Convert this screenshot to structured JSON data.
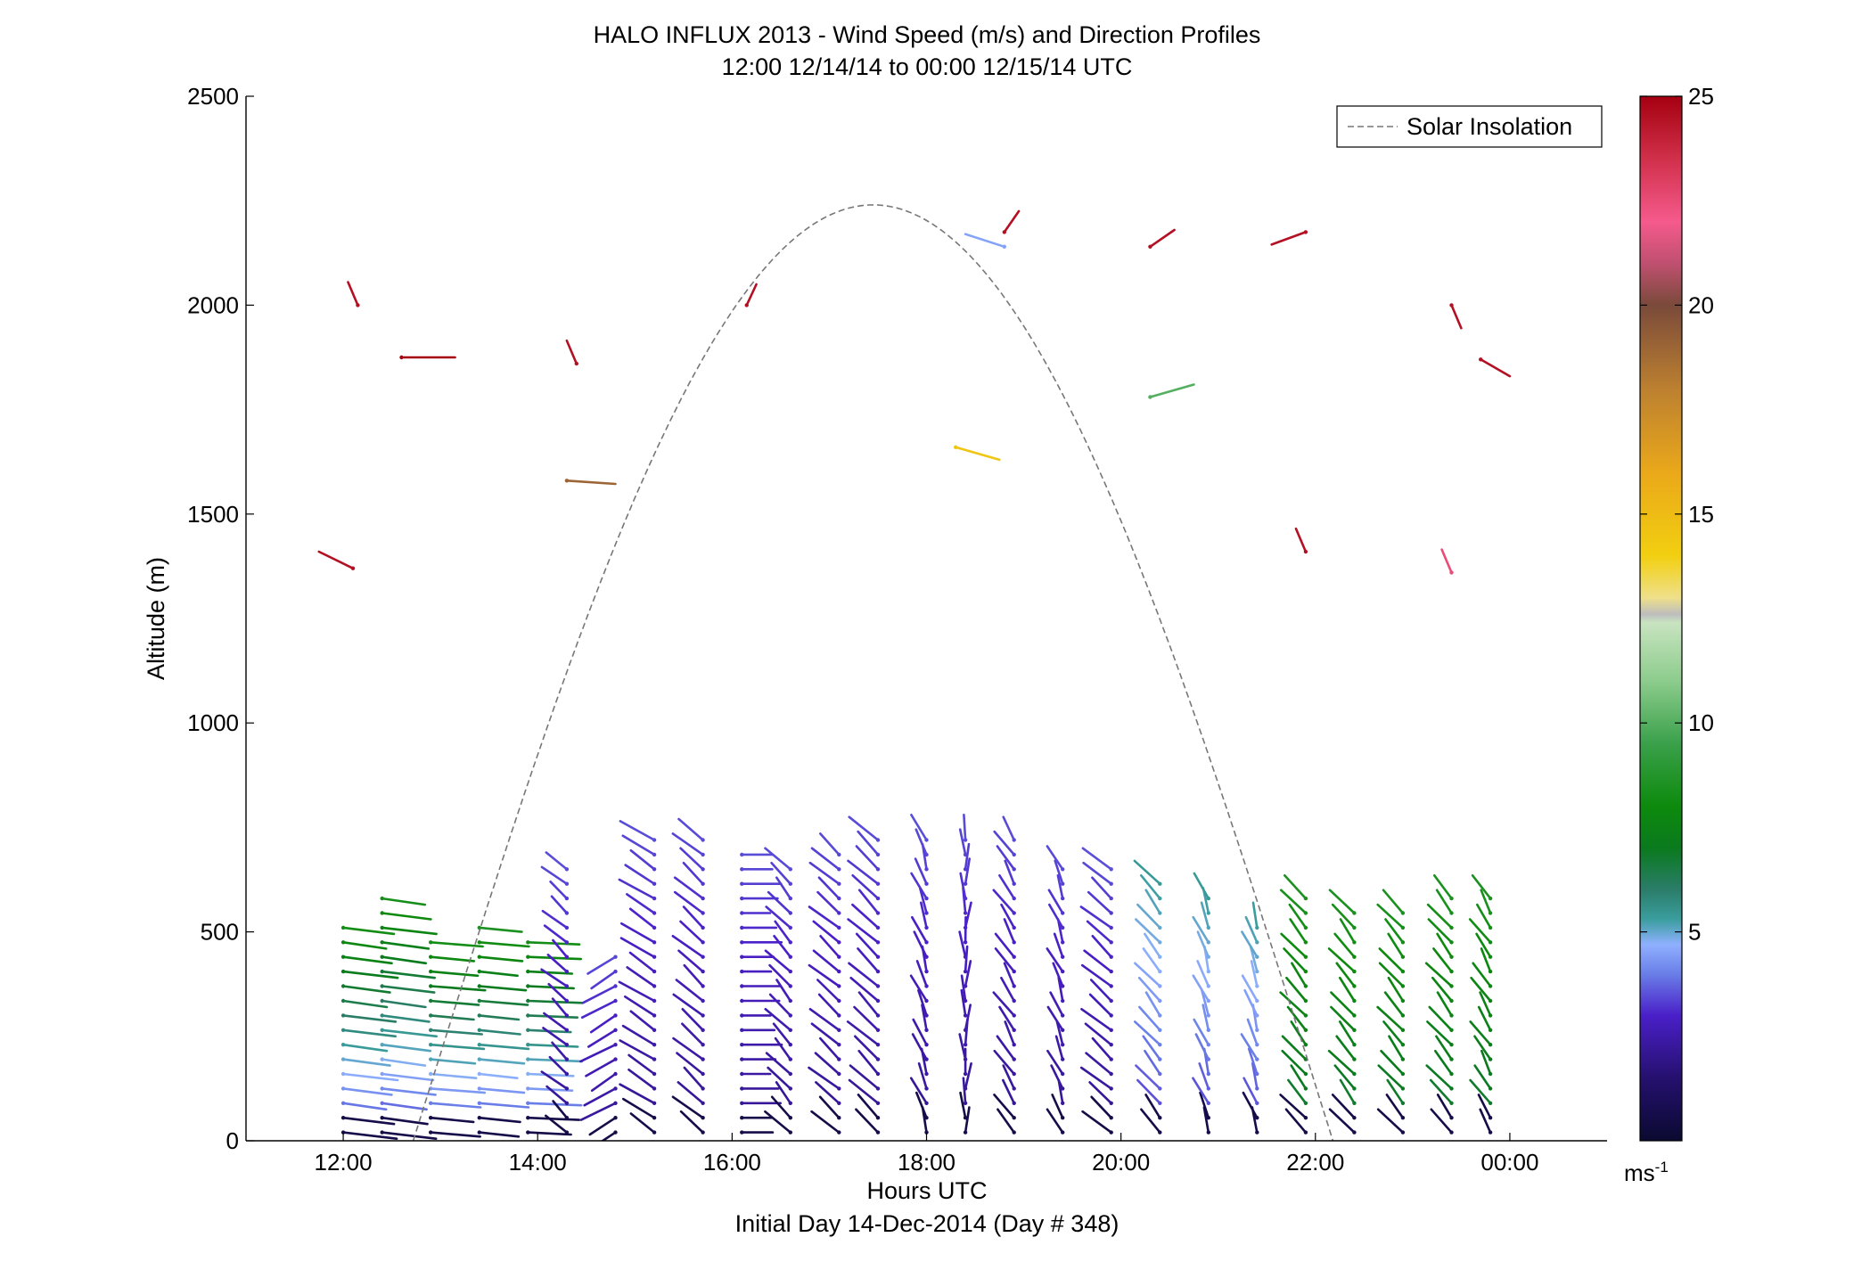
{
  "chart_data": {
    "type": "vector-field",
    "title": "HALO INFLUX 2013 - Wind Speed (m/s) and Direction Profiles",
    "subtitle": "12:00 12/14/14 to 00:00 12/15/14  UTC",
    "xlabel": "Hours UTC",
    "xlabel2": "Initial Day 14-Dec-2014 (Day # 348)",
    "ylabel": "Altitude (m)",
    "xlim": [
      11.0,
      25.0
    ],
    "ylim": [
      0,
      2500
    ],
    "x_ticks": [
      {
        "value": 12,
        "label": "12:00"
      },
      {
        "value": 14,
        "label": "14:00"
      },
      {
        "value": 16,
        "label": "16:00"
      },
      {
        "value": 18,
        "label": "18:00"
      },
      {
        "value": 20,
        "label": "20:00"
      },
      {
        "value": 22,
        "label": "22:00"
      },
      {
        "value": 24,
        "label": "00:00"
      }
    ],
    "y_ticks": [
      {
        "value": 0,
        "label": "0"
      },
      {
        "value": 500,
        "label": "500"
      },
      {
        "value": 1000,
        "label": "1000"
      },
      {
        "value": 1500,
        "label": "1500"
      },
      {
        "value": 2000,
        "label": "2000"
      },
      {
        "value": 2500,
        "label": "2500"
      }
    ],
    "colorbar": {
      "range": [
        0,
        25
      ],
      "ticks": [
        {
          "value": 5,
          "label": "5"
        },
        {
          "value": 10,
          "label": "10"
        },
        {
          "value": 15,
          "label": "15"
        },
        {
          "value": 20,
          "label": "20"
        },
        {
          "value": 25,
          "label": "25"
        }
      ],
      "unit_base": "ms",
      "unit_exp": "-1",
      "stops": [
        {
          "v": 0,
          "color": "#0a0a30"
        },
        {
          "v": 1.5,
          "color": "#25106e"
        },
        {
          "v": 3,
          "color": "#4a1fc8"
        },
        {
          "v": 4,
          "color": "#6a7fe8"
        },
        {
          "v": 4.7,
          "color": "#8fb0ff"
        },
        {
          "v": 5.3,
          "color": "#3a9e9e"
        },
        {
          "v": 6,
          "color": "#2b7d6a"
        },
        {
          "v": 7,
          "color": "#0a7a1e"
        },
        {
          "v": 8,
          "color": "#0d8a0d"
        },
        {
          "v": 9.5,
          "color": "#3aa04a"
        },
        {
          "v": 11,
          "color": "#8ccc8c"
        },
        {
          "v": 12.4,
          "color": "#c8e4c0"
        },
        {
          "v": 12.6,
          "color": "#bdbdbd"
        },
        {
          "v": 13,
          "color": "#efe08a"
        },
        {
          "v": 14,
          "color": "#f2cf10"
        },
        {
          "v": 16,
          "color": "#eaa81a"
        },
        {
          "v": 18,
          "color": "#bc8030"
        },
        {
          "v": 20,
          "color": "#7a4a3a"
        },
        {
          "v": 21,
          "color": "#c05070"
        },
        {
          "v": 22,
          "color": "#f55a8c"
        },
        {
          "v": 23.5,
          "color": "#d0304a"
        },
        {
          "v": 25,
          "color": "#a50010"
        }
      ]
    },
    "legend": {
      "entries": [
        {
          "name": "Solar Insolation",
          "style": "dashed",
          "color": "#777777"
        }
      ],
      "placement": "top-right"
    },
    "solar_insolation": {
      "sunrise": 12.72,
      "sunset": 22.18,
      "peak": 2240
    },
    "upper_barbs": [
      {
        "t": 12.1,
        "alt": 1370,
        "dx": -0.35,
        "dy": 40,
        "speed": 24.5
      },
      {
        "t": 12.15,
        "alt": 2000,
        "dx": -0.1,
        "dy": 55,
        "speed": 24.5
      },
      {
        "t": 12.6,
        "alt": 1875,
        "dx": 0.55,
        "dy": 0,
        "speed": 25
      },
      {
        "t": 14.4,
        "alt": 1860,
        "dx": -0.1,
        "dy": 55,
        "speed": 24.5
      },
      {
        "t": 14.3,
        "alt": 1580,
        "dx": 0.5,
        "dy": -8,
        "speed": 19
      },
      {
        "t": 16.15,
        "alt": 2000,
        "dx": 0.1,
        "dy": 50,
        "speed": 24.5
      },
      {
        "t": 18.3,
        "alt": 1660,
        "dx": 0.45,
        "dy": -30,
        "speed": 14.5
      },
      {
        "t": 18.8,
        "alt": 2140,
        "dx": -0.4,
        "dy": 30,
        "speed": 4.5
      },
      {
        "t": 18.8,
        "alt": 2175,
        "dx": 0.15,
        "dy": 50,
        "speed": 24.5
      },
      {
        "t": 20.3,
        "alt": 1780,
        "dx": 0.45,
        "dy": 30,
        "speed": 10
      },
      {
        "t": 20.3,
        "alt": 2140,
        "dx": 0.25,
        "dy": 40,
        "speed": 24.5
      },
      {
        "t": 21.9,
        "alt": 1410,
        "dx": -0.1,
        "dy": 55,
        "speed": 24.5
      },
      {
        "t": 21.9,
        "alt": 2175,
        "dx": -0.35,
        "dy": -30,
        "speed": 24.5
      },
      {
        "t": 23.4,
        "alt": 1360,
        "dx": -0.1,
        "dy": 55,
        "speed": 22.5
      },
      {
        "t": 23.4,
        "alt": 2000,
        "dx": 0.1,
        "dy": -55,
        "speed": 24.5
      },
      {
        "t": 23.7,
        "alt": 1870,
        "dx": 0.3,
        "dy": -40,
        "speed": 24.5
      }
    ]
  }
}
